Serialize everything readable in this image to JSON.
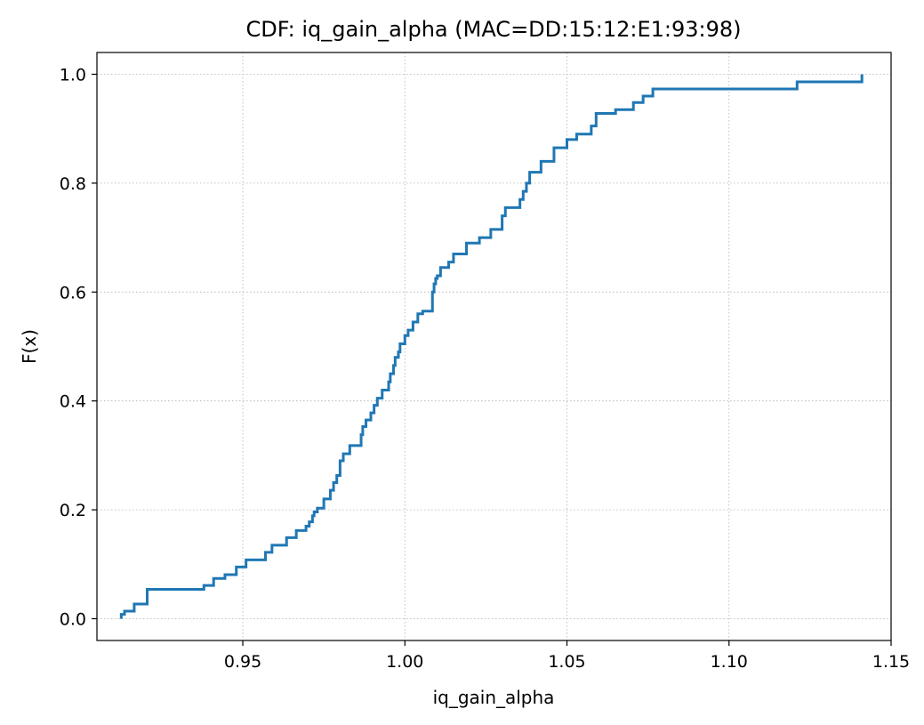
{
  "chart_data": {
    "type": "line",
    "title": "CDF: iq_gain_alpha (MAC=DD:15:12:E1:93:98)",
    "xlabel": "iq_gain_alpha",
    "ylabel": "F(x)",
    "xlim": [
      0.905,
      1.15
    ],
    "ylim": [
      -0.04,
      1.04
    ],
    "xticks": [
      0.95,
      1.0,
      1.05,
      1.1,
      1.15
    ],
    "xtick_labels": [
      "0.95",
      "1.00",
      "1.05",
      "1.10",
      "1.15"
    ],
    "yticks": [
      0.0,
      0.2,
      0.4,
      0.6,
      0.8,
      1.0
    ],
    "ytick_labels": [
      "0.0",
      "0.2",
      "0.4",
      "0.6",
      "0.8",
      "1.0"
    ],
    "grid": true,
    "color": "#1f77b4",
    "series": [
      {
        "step": "post",
        "x": [
          0.9125,
          0.9135,
          0.9165,
          0.9205,
          0.938,
          0.941,
          0.9445,
          0.948,
          0.951,
          0.9525,
          0.957,
          0.959,
          0.9635,
          0.9665,
          0.9695,
          0.9705,
          0.9715,
          0.972,
          0.973,
          0.975,
          0.977,
          0.978,
          0.979,
          0.98,
          0.981,
          0.983,
          0.9865,
          0.987,
          0.988,
          0.9895,
          0.9905,
          0.9915,
          0.993,
          0.995,
          0.9955,
          0.9965,
          0.997,
          0.998,
          0.9985,
          1.0,
          1.001,
          1.0025,
          1.004,
          1.0055,
          1.0085,
          1.009,
          1.0095,
          1.01,
          1.011,
          1.0135,
          1.015,
          1.019,
          1.023,
          1.0265,
          1.03,
          1.031,
          1.0355,
          1.0365,
          1.0375,
          1.0385,
          1.042,
          1.046,
          1.05,
          1.053,
          1.0575,
          1.059,
          1.065,
          1.0705,
          1.0735,
          1.0765,
          1.121,
          1.141
        ],
        "y": [
          0.008,
          0.014,
          0.027,
          0.054,
          0.061,
          0.074,
          0.081,
          0.095,
          0.108,
          0.108,
          0.122,
          0.135,
          0.149,
          0.162,
          0.17,
          0.178,
          0.189,
          0.196,
          0.203,
          0.22,
          0.236,
          0.25,
          0.263,
          0.29,
          0.303,
          0.318,
          0.338,
          0.353,
          0.365,
          0.378,
          0.392,
          0.405,
          0.42,
          0.435,
          0.45,
          0.465,
          0.48,
          0.49,
          0.505,
          0.52,
          0.53,
          0.545,
          0.56,
          0.565,
          0.6,
          0.615,
          0.625,
          0.63,
          0.645,
          0.655,
          0.67,
          0.69,
          0.7,
          0.715,
          0.74,
          0.755,
          0.77,
          0.785,
          0.8,
          0.82,
          0.84,
          0.865,
          0.88,
          0.89,
          0.905,
          0.928,
          0.935,
          0.948,
          0.96,
          0.973,
          0.986,
          1.0
        ]
      }
    ]
  }
}
